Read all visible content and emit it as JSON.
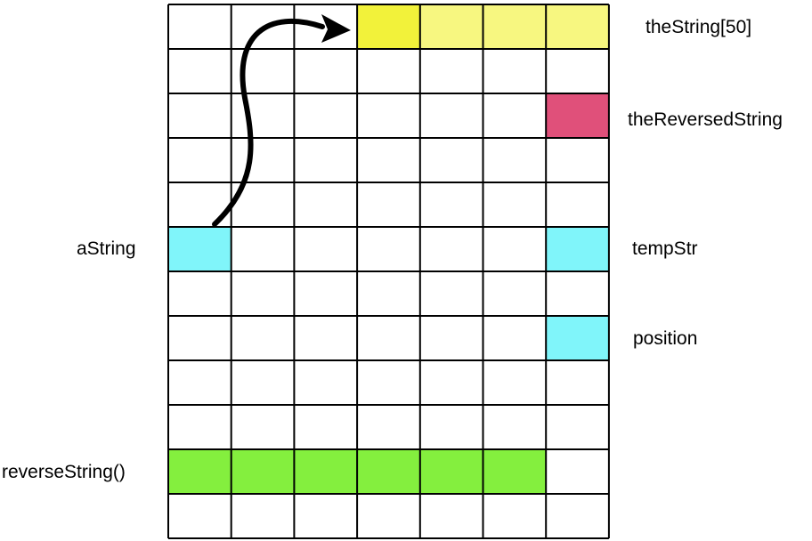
{
  "colors": {
    "yellow_strong": "#f2f23a",
    "yellow_light": "#f7f780",
    "pink": "#e0507a",
    "cyan": "#80f5fa",
    "green": "#84ef3e",
    "grid_line": "#000000",
    "background": "#ffffff"
  },
  "grid": {
    "columns": 7,
    "rows": 12
  },
  "labels": {
    "the_string": "theString[50]",
    "the_reversed_string": "theReversedString",
    "a_string": "aString",
    "temp_str": "tempStr",
    "position": "position",
    "reverse_string": "reverseString()"
  },
  "highlighted_cells": [
    {
      "name": "thestring-cell-1",
      "row": 0,
      "col": 3,
      "color": "yellow_strong"
    },
    {
      "name": "thestring-cell-2",
      "row": 0,
      "col": 4,
      "color": "yellow_light"
    },
    {
      "name": "thestring-cell-3",
      "row": 0,
      "col": 5,
      "color": "yellow_light"
    },
    {
      "name": "thestring-cell-4",
      "row": 0,
      "col": 6,
      "color": "yellow_light"
    },
    {
      "name": "thereversedstring-cell",
      "row": 2,
      "col": 6,
      "color": "pink"
    },
    {
      "name": "astring-cell",
      "row": 5,
      "col": 0,
      "color": "cyan"
    },
    {
      "name": "tempstr-cell",
      "row": 5,
      "col": 6,
      "color": "cyan"
    },
    {
      "name": "position-cell",
      "row": 7,
      "col": 6,
      "color": "cyan"
    },
    {
      "name": "reversestring-cell-1",
      "row": 10,
      "col": 0,
      "color": "green"
    },
    {
      "name": "reversestring-cell-2",
      "row": 10,
      "col": 1,
      "color": "green"
    },
    {
      "name": "reversestring-cell-3",
      "row": 10,
      "col": 2,
      "color": "green"
    },
    {
      "name": "reversestring-cell-4",
      "row": 10,
      "col": 3,
      "color": "green"
    },
    {
      "name": "reversestring-cell-5",
      "row": 10,
      "col": 4,
      "color": "green"
    },
    {
      "name": "reversestring-cell-6",
      "row": 10,
      "col": 5,
      "color": "green"
    }
  ],
  "pointer_arrow": {
    "from": "aString",
    "to": "theString[50]"
  }
}
